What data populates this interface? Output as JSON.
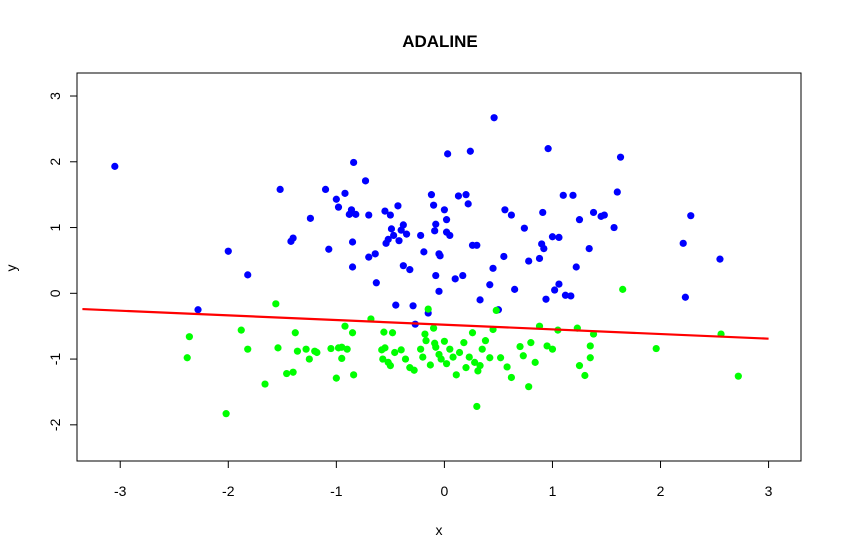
{
  "chart_data": {
    "type": "scatter",
    "title": "ADALINE",
    "xlabel": "x",
    "ylabel": "y",
    "xlim": [
      -3.4,
      3.3
    ],
    "ylim": [
      -2.55,
      3.35
    ],
    "xticks": [
      -3,
      -2,
      -1,
      0,
      1,
      2,
      3
    ],
    "yticks": [
      -2,
      -1,
      0,
      1,
      2,
      3
    ],
    "grid": false,
    "legend": "none",
    "series": [
      {
        "color": "#0000ff",
        "points": [
          [
            -3.05,
            1.93
          ],
          [
            -2.28,
            -0.25
          ],
          [
            -2.0,
            0.64
          ],
          [
            -1.82,
            0.28
          ],
          [
            -1.52,
            1.58
          ],
          [
            -1.42,
            0.79
          ],
          [
            -1.4,
            0.84
          ],
          [
            -1.24,
            1.14
          ],
          [
            -1.1,
            1.58
          ],
          [
            -1.07,
            0.67
          ],
          [
            -1.0,
            1.43
          ],
          [
            -0.98,
            1.31
          ],
          [
            -0.92,
            1.52
          ],
          [
            -0.88,
            1.2
          ],
          [
            -0.86,
            1.27
          ],
          [
            -0.85,
            0.78
          ],
          [
            -0.85,
            0.4
          ],
          [
            -0.84,
            1.99
          ],
          [
            -0.82,
            1.2
          ],
          [
            -0.73,
            1.71
          ],
          [
            -0.7,
            0.55
          ],
          [
            -0.7,
            1.19
          ],
          [
            -0.64,
            0.6
          ],
          [
            -0.63,
            0.16
          ],
          [
            -0.55,
            1.25
          ],
          [
            -0.54,
            0.76
          ],
          [
            -0.52,
            0.82
          ],
          [
            -0.5,
            1.19
          ],
          [
            -0.49,
            0.98
          ],
          [
            -0.47,
            0.88
          ],
          [
            -0.45,
            -0.18
          ],
          [
            -0.43,
            1.33
          ],
          [
            -0.42,
            0.8
          ],
          [
            -0.4,
            0.96
          ],
          [
            -0.38,
            1.04
          ],
          [
            -0.38,
            0.42
          ],
          [
            -0.35,
            0.9
          ],
          [
            -0.32,
            0.36
          ],
          [
            -0.29,
            -0.19
          ],
          [
            -0.27,
            -0.47
          ],
          [
            -0.22,
            0.88
          ],
          [
            -0.19,
            0.63
          ],
          [
            -0.15,
            -0.3
          ],
          [
            -0.12,
            1.5
          ],
          [
            -0.1,
            1.34
          ],
          [
            -0.09,
            0.95
          ],
          [
            -0.08,
            1.05
          ],
          [
            -0.08,
            0.27
          ],
          [
            -0.05,
            0.03
          ],
          [
            -0.05,
            0.6
          ],
          [
            -0.04,
            0.57
          ],
          [
            0.0,
            1.27
          ],
          [
            0.02,
            1.12
          ],
          [
            0.02,
            0.93
          ],
          [
            0.03,
            2.12
          ],
          [
            0.05,
            0.88
          ],
          [
            0.1,
            0.22
          ],
          [
            0.13,
            1.48
          ],
          [
            0.17,
            0.27
          ],
          [
            0.2,
            1.5
          ],
          [
            0.22,
            1.36
          ],
          [
            0.24,
            2.16
          ],
          [
            0.26,
            0.73
          ],
          [
            0.3,
            0.73
          ],
          [
            0.33,
            -0.1
          ],
          [
            0.42,
            0.13
          ],
          [
            0.45,
            0.38
          ],
          [
            0.46,
            2.67
          ],
          [
            0.5,
            -0.25
          ],
          [
            0.55,
            0.56
          ],
          [
            0.56,
            1.27
          ],
          [
            0.62,
            1.19
          ],
          [
            0.65,
            0.06
          ],
          [
            0.74,
            0.99
          ],
          [
            0.78,
            0.49
          ],
          [
            0.88,
            0.53
          ],
          [
            0.9,
            0.75
          ],
          [
            0.91,
            1.23
          ],
          [
            0.92,
            0.68
          ],
          [
            0.94,
            -0.09
          ],
          [
            0.96,
            2.2
          ],
          [
            1.0,
            0.86
          ],
          [
            1.02,
            0.05
          ],
          [
            1.06,
            0.85
          ],
          [
            1.06,
            0.14
          ],
          [
            1.1,
            1.49
          ],
          [
            1.12,
            -0.03
          ],
          [
            1.17,
            -0.04
          ],
          [
            1.19,
            1.49
          ],
          [
            1.22,
            0.4
          ],
          [
            1.25,
            1.12
          ],
          [
            1.34,
            0.68
          ],
          [
            1.38,
            1.23
          ],
          [
            1.45,
            1.17
          ],
          [
            1.48,
            1.19
          ],
          [
            1.57,
            1.0
          ],
          [
            1.6,
            1.54
          ],
          [
            1.63,
            2.07
          ],
          [
            2.21,
            0.76
          ],
          [
            2.23,
            -0.06
          ],
          [
            2.28,
            1.18
          ],
          [
            2.55,
            0.52
          ]
        ]
      },
      {
        "color": "#00ff00",
        "points": [
          [
            -2.38,
            -0.98
          ],
          [
            -2.36,
            -0.66
          ],
          [
            -2.02,
            -1.83
          ],
          [
            -1.88,
            -0.56
          ],
          [
            -1.82,
            -0.85
          ],
          [
            -1.66,
            -1.38
          ],
          [
            -1.56,
            -0.16
          ],
          [
            -1.54,
            -0.83
          ],
          [
            -1.46,
            -1.22
          ],
          [
            -1.4,
            -1.2
          ],
          [
            -1.38,
            -0.6
          ],
          [
            -1.36,
            -0.88
          ],
          [
            -1.28,
            -0.85
          ],
          [
            -1.25,
            -1.0
          ],
          [
            -1.2,
            -0.88
          ],
          [
            -1.18,
            -0.9
          ],
          [
            -1.05,
            -0.84
          ],
          [
            -1.0,
            -1.29
          ],
          [
            -0.98,
            -0.83
          ],
          [
            -0.95,
            -0.82
          ],
          [
            -0.95,
            -0.99
          ],
          [
            -0.92,
            -0.5
          ],
          [
            -0.9,
            -0.85
          ],
          [
            -0.85,
            -0.6
          ],
          [
            -0.84,
            -1.24
          ],
          [
            -0.68,
            -0.39
          ],
          [
            -0.58,
            -0.86
          ],
          [
            -0.57,
            -1.0
          ],
          [
            -0.56,
            -0.59
          ],
          [
            -0.55,
            -0.83
          ],
          [
            -0.52,
            -1.05
          ],
          [
            -0.5,
            -1.1
          ],
          [
            -0.48,
            -0.6
          ],
          [
            -0.46,
            -0.9
          ],
          [
            -0.4,
            -0.86
          ],
          [
            -0.36,
            -1.0
          ],
          [
            -0.32,
            -1.13
          ],
          [
            -0.28,
            -1.17
          ],
          [
            -0.22,
            -0.85
          ],
          [
            -0.2,
            -0.97
          ],
          [
            -0.18,
            -0.62
          ],
          [
            -0.17,
            -0.72
          ],
          [
            -0.15,
            -0.24
          ],
          [
            -0.13,
            -1.09
          ],
          [
            -0.1,
            -0.53
          ],
          [
            -0.09,
            -0.76
          ],
          [
            -0.08,
            -0.82
          ],
          [
            -0.05,
            -0.93
          ],
          [
            -0.03,
            -1.0
          ],
          [
            0.0,
            -0.73
          ],
          [
            0.02,
            -1.07
          ],
          [
            0.05,
            -0.85
          ],
          [
            0.08,
            -0.97
          ],
          [
            0.11,
            -1.24
          ],
          [
            0.14,
            -0.9
          ],
          [
            0.18,
            -0.75
          ],
          [
            0.2,
            -1.13
          ],
          [
            0.23,
            -0.97
          ],
          [
            0.26,
            -0.6
          ],
          [
            0.28,
            -1.05
          ],
          [
            0.3,
            -1.72
          ],
          [
            0.31,
            -1.18
          ],
          [
            0.33,
            -1.1
          ],
          [
            0.35,
            -0.85
          ],
          [
            0.38,
            -0.72
          ],
          [
            0.42,
            -0.98
          ],
          [
            0.45,
            -0.55
          ],
          [
            0.48,
            -0.26
          ],
          [
            0.52,
            -0.98
          ],
          [
            0.58,
            -1.12
          ],
          [
            0.62,
            -1.28
          ],
          [
            0.7,
            -0.81
          ],
          [
            0.73,
            -0.95
          ],
          [
            0.78,
            -1.42
          ],
          [
            0.8,
            -0.75
          ],
          [
            0.84,
            -1.05
          ],
          [
            0.88,
            -0.5
          ],
          [
            0.95,
            -0.8
          ],
          [
            1.0,
            -0.85
          ],
          [
            1.05,
            -0.56
          ],
          [
            1.23,
            -0.53
          ],
          [
            1.25,
            -1.1
          ],
          [
            1.3,
            -1.25
          ],
          [
            1.35,
            -0.98
          ],
          [
            1.35,
            -0.8
          ],
          [
            1.38,
            -0.62
          ],
          [
            1.65,
            0.06
          ],
          [
            1.96,
            -0.84
          ],
          [
            2.56,
            -0.62
          ],
          [
            2.72,
            -1.26
          ]
        ]
      }
    ],
    "decision_line": {
      "color": "#ff0000",
      "x": [
        -3.35,
        3.0
      ],
      "y": [
        -0.24,
        -0.69
      ]
    }
  }
}
